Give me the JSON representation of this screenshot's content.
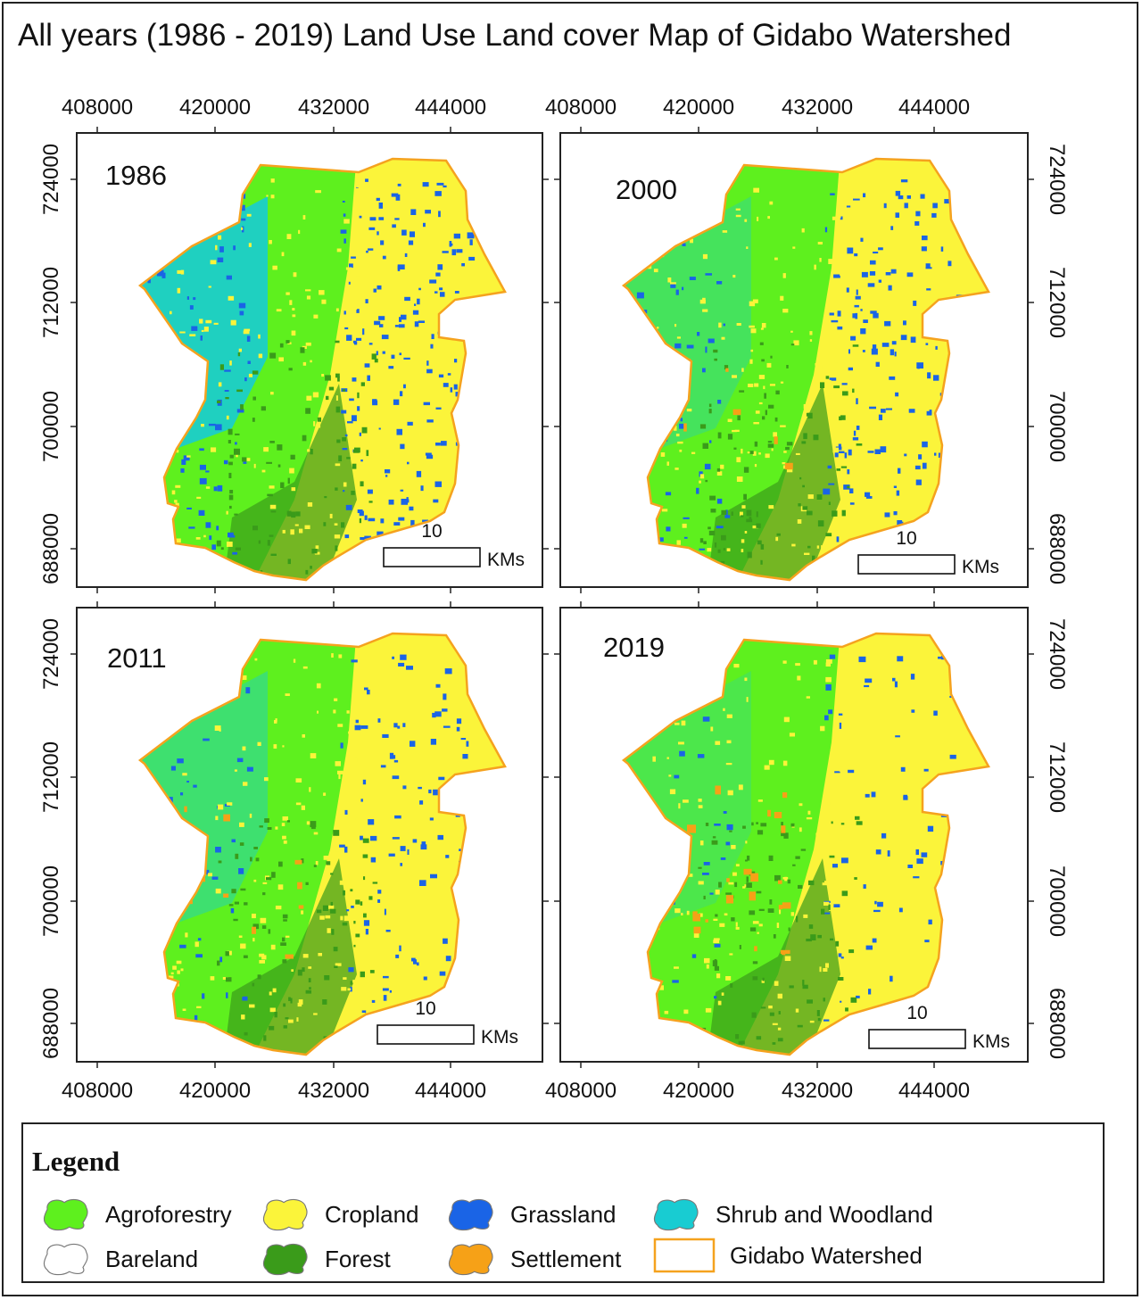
{
  "title": "All years (1986 - 2019) Land Use Land cover Map of Gidabo Watershed",
  "axis_ticks": {
    "x": [
      "408000",
      "420000",
      "432000",
      "444000"
    ],
    "y": [
      "724000",
      "712000",
      "700000",
      "688000"
    ]
  },
  "panels": [
    {
      "year": "1986",
      "scalebar_value": "10",
      "scalebar_unit": "KMs"
    },
    {
      "year": "2000",
      "scalebar_value": "10",
      "scalebar_unit": "KMs"
    },
    {
      "year": "2011",
      "scalebar_value": "10",
      "scalebar_unit": "KMs"
    },
    {
      "year": "2019",
      "scalebar_value": "10",
      "scalebar_unit": "KMs"
    }
  ],
  "legend": {
    "title": "Legend",
    "items": [
      {
        "label": "Agroforestry",
        "color": "#5ef01e",
        "icon": "blob-swatch"
      },
      {
        "label": "Cropland",
        "color": "#fbf43a",
        "icon": "blob-swatch"
      },
      {
        "label": "Grassland",
        "color": "#1a64e6",
        "icon": "blob-swatch"
      },
      {
        "label": "Shrub and Woodland",
        "color": "#18ccd2",
        "icon": "blob-swatch"
      },
      {
        "label": "Bareland",
        "color": "#ffffff",
        "icon": "blob-swatch"
      },
      {
        "label": "Forest",
        "color": "#3a9b1a",
        "icon": "blob-swatch"
      },
      {
        "label": "Settlement",
        "color": "#f6a117",
        "icon": "blob-swatch"
      },
      {
        "label": "Gidabo Watershed",
        "color": "#f5a21e",
        "icon": "outline-box"
      }
    ]
  },
  "colors": {
    "agroforestry": "#5ef01e",
    "cropland": "#fbf43a",
    "grassland": "#1a64e6",
    "shrub": "#18ccd2",
    "forest": "#3a9b1a",
    "settlement": "#f6a117",
    "boundary": "#f5a21e"
  }
}
